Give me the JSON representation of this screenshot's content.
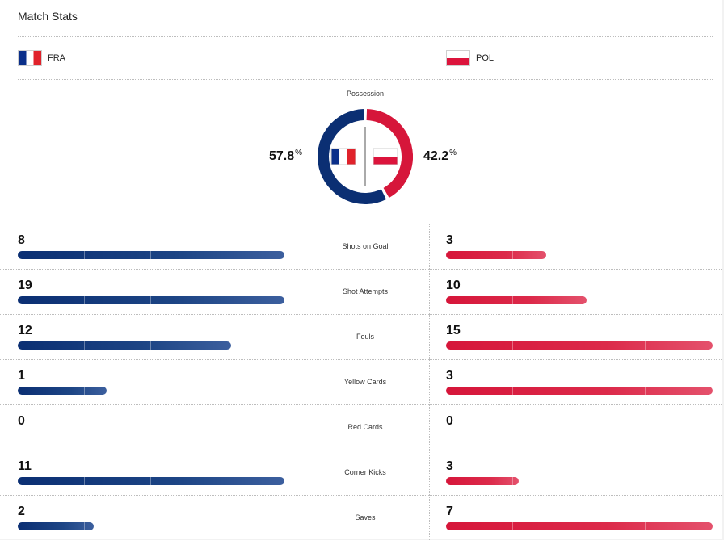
{
  "header": {
    "title": "Match Stats"
  },
  "teams": {
    "home": {
      "abbr": "FRA",
      "color": "#0b2f73",
      "flag": "france-flag"
    },
    "away": {
      "abbr": "POL",
      "color": "#d6163a",
      "flag": "poland-flag"
    }
  },
  "possession": {
    "label": "Possession",
    "home_value": "57.8",
    "away_value": "42.2",
    "unit": "%"
  },
  "stats": [
    {
      "label": "Shots on Goal",
      "home": "8",
      "away": "3",
      "home_fill": 1.0,
      "away_fill": 0.375
    },
    {
      "label": "Shot Attempts",
      "home": "19",
      "away": "10",
      "home_fill": 1.0,
      "away_fill": 0.526
    },
    {
      "label": "Fouls",
      "home": "12",
      "away": "15",
      "home_fill": 0.8,
      "away_fill": 1.0
    },
    {
      "label": "Yellow Cards",
      "home": "1",
      "away": "3",
      "home_fill": 0.333,
      "away_fill": 1.0
    },
    {
      "label": "Red Cards",
      "home": "0",
      "away": "0",
      "home_fill": 0,
      "away_fill": 0
    },
    {
      "label": "Corner Kicks",
      "home": "11",
      "away": "3",
      "home_fill": 1.0,
      "away_fill": 0.273
    },
    {
      "label": "Saves",
      "home": "2",
      "away": "7",
      "home_fill": 0.286,
      "away_fill": 1.0
    }
  ]
}
